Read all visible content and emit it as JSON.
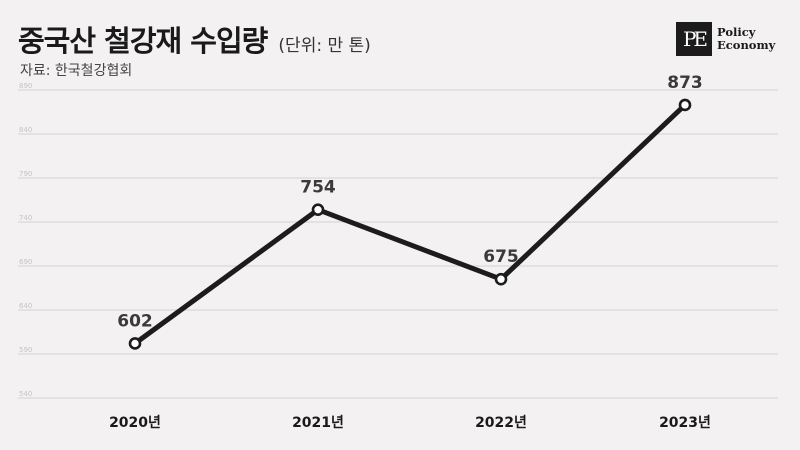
{
  "header": {
    "title": "중국산 철강재 수입량",
    "unit": "(단위: 만 톤)",
    "source": "자료: 한국철강협회"
  },
  "logo": {
    "mark": "PE",
    "line1": "Policy",
    "line2": "Economy"
  },
  "colors": {
    "background": "#f3f1f1",
    "line": "#1c1c1c",
    "grid": "#d4d1d1",
    "tick_text": "#c6c3c3"
  },
  "chart_data": {
    "type": "line",
    "title": "중국산 철강재 수입량",
    "categories": [
      "2020년",
      "2021년",
      "2022년",
      "2023년"
    ],
    "series": [
      {
        "values": [
          602,
          754,
          675,
          873
        ]
      }
    ],
    "yticks": [
      540,
      590,
      640,
      690,
      740,
      790,
      840,
      890
    ],
    "ytick_labels": [
      "540",
      "590",
      "640",
      "690",
      "740",
      "790",
      "840",
      "890"
    ],
    "ylim": [
      540,
      890
    ],
    "grid": true,
    "legend": "none",
    "data_labels": [
      "602",
      "754",
      "675",
      "873"
    ],
    "marker": "hollow-circle"
  }
}
